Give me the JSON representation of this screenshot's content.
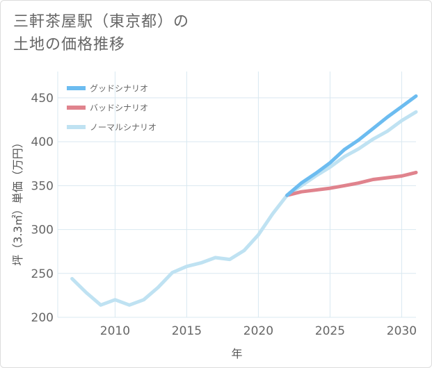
{
  "chart_title": {
    "line1": "三軒茶屋駅（東京都）の",
    "line2": "土地の価格推移"
  },
  "chart_data": {
    "type": "line",
    "title": "三軒茶屋駅（東京都）の土地の価格推移",
    "xlabel": "年",
    "ylabel": "坪（3.3㎡）単価（万円）",
    "xlim": [
      2006,
      2031
    ],
    "ylim": [
      200,
      480
    ],
    "x_ticks": [
      2010,
      2015,
      2020,
      2025,
      2030
    ],
    "y_ticks": [
      200,
      250,
      300,
      350,
      400,
      450
    ],
    "grid": true,
    "legend_position": "top-left",
    "series": [
      {
        "name": "グッドシナリオ",
        "color": "#6cbcf0",
        "x": [
          2022,
          2023,
          2024,
          2025,
          2026,
          2027,
          2028,
          2029,
          2030,
          2031
        ],
        "values": [
          339,
          353,
          364,
          376,
          391,
          402,
          415,
          428,
          440,
          452
        ]
      },
      {
        "name": "バッドシナリオ",
        "color": "#e0838d",
        "x": [
          2022,
          2023,
          2024,
          2025,
          2026,
          2027,
          2028,
          2029,
          2030,
          2031
        ],
        "values": [
          339,
          343,
          345,
          347,
          350,
          353,
          357,
          359,
          361,
          365
        ]
      },
      {
        "name": "ノーマルシナリオ",
        "color": "#bfe2f2",
        "x": [
          2007,
          2008,
          2009,
          2010,
          2011,
          2012,
          2013,
          2014,
          2015,
          2016,
          2017,
          2018,
          2019,
          2020,
          2021,
          2022,
          2023,
          2024,
          2025,
          2026,
          2027,
          2028,
          2029,
          2030,
          2031
        ],
        "values": [
          244,
          228,
          214,
          220,
          214,
          220,
          234,
          251,
          258,
          262,
          268,
          266,
          276,
          294,
          318,
          339,
          350,
          361,
          371,
          383,
          392,
          403,
          412,
          424,
          434
        ]
      }
    ]
  }
}
